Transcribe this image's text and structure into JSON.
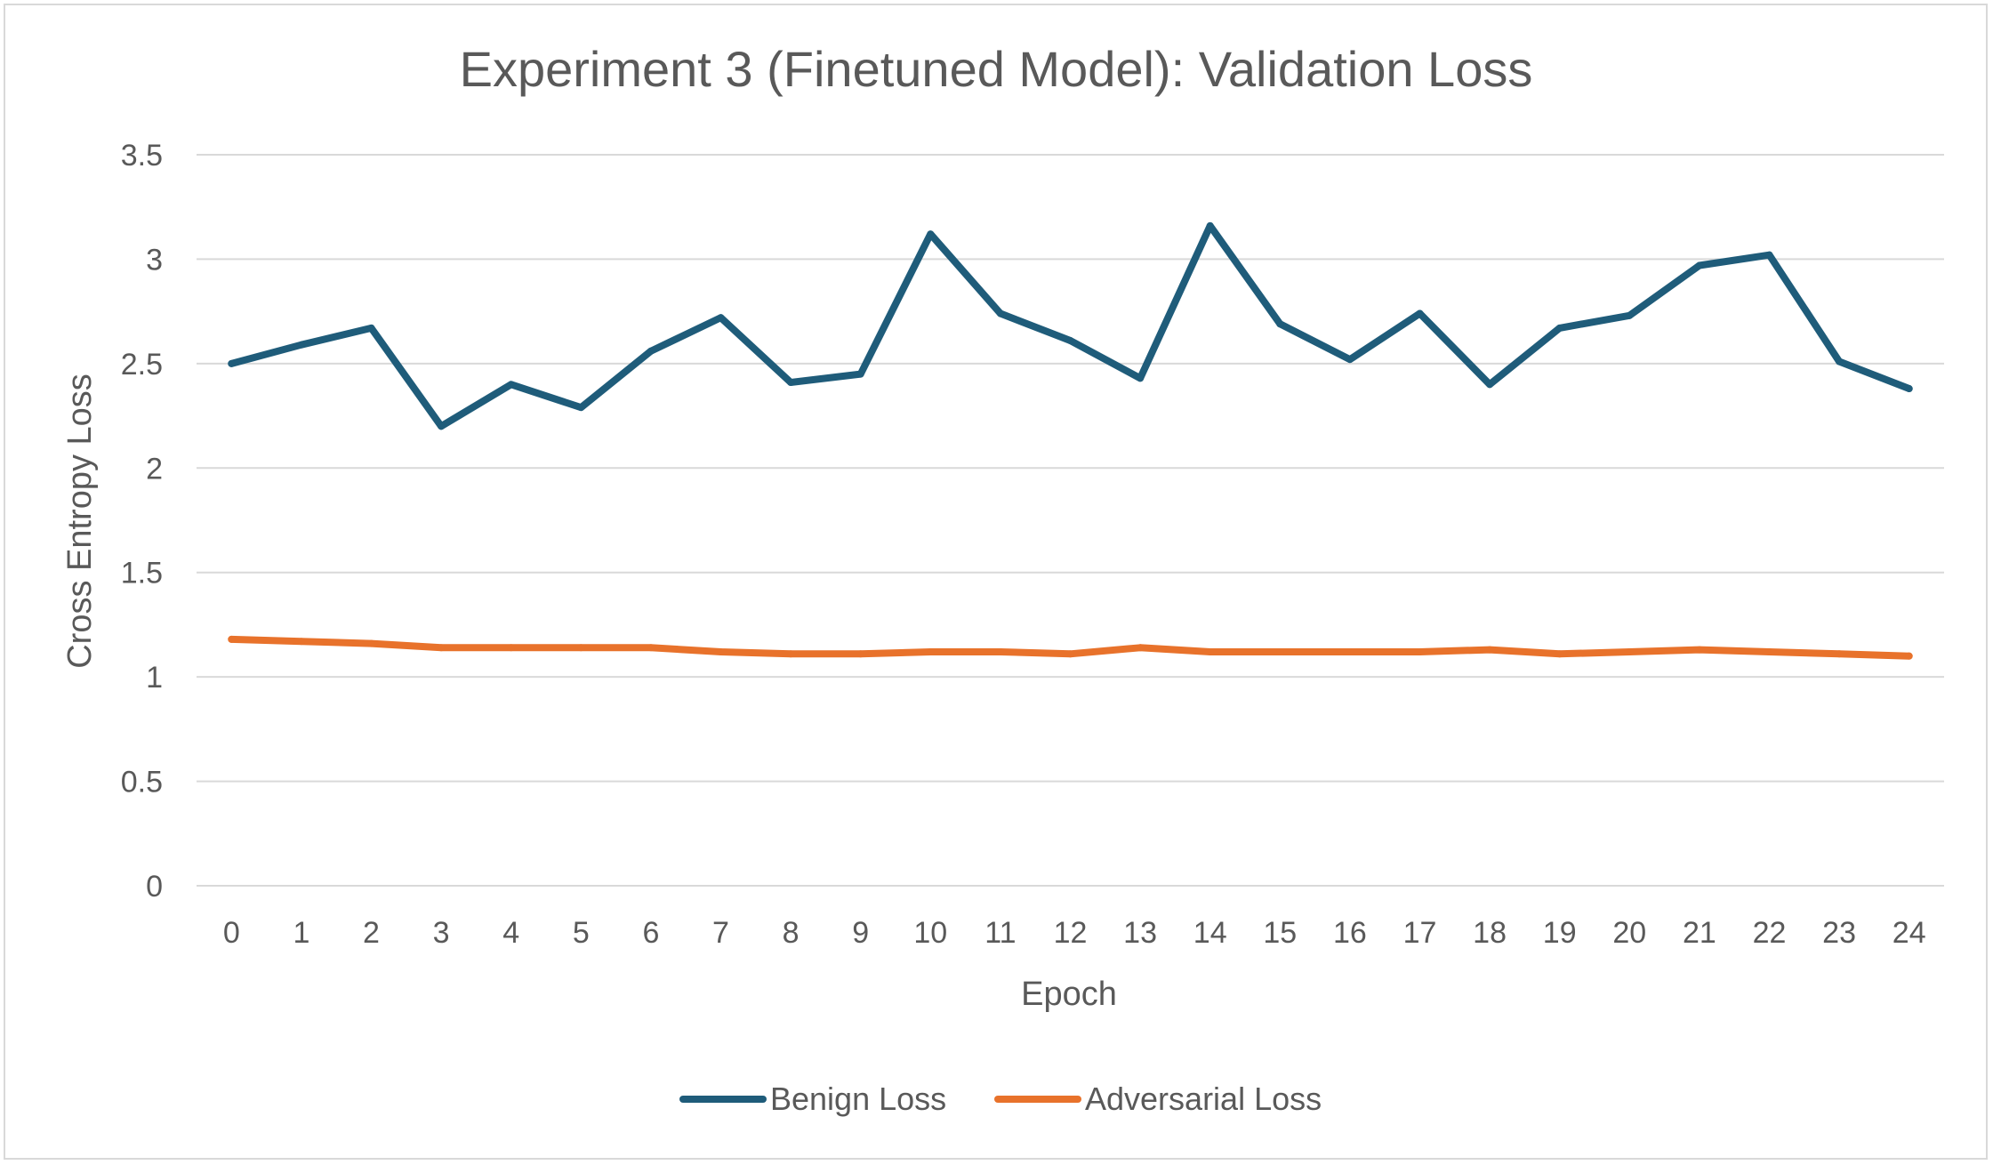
{
  "chart_data": {
    "type": "line",
    "title": "Experiment 3 (Finetuned Model): Validation Loss",
    "xlabel": "Epoch",
    "ylabel": "Cross Entropy Loss",
    "ylim": [
      0,
      3.5
    ],
    "yticks": [
      "0",
      "0.5",
      "1",
      "1.5",
      "2",
      "2.5",
      "3",
      "3.5"
    ],
    "categories": [
      "0",
      "1",
      "2",
      "3",
      "4",
      "5",
      "6",
      "7",
      "8",
      "9",
      "10",
      "11",
      "12",
      "13",
      "14",
      "15",
      "16",
      "17",
      "18",
      "19",
      "20",
      "21",
      "22",
      "23",
      "24"
    ],
    "grid": true,
    "legend_position": "bottom",
    "series": [
      {
        "name": "Benign Loss",
        "color": "#1f5c7a",
        "values": [
          2.5,
          2.59,
          2.67,
          2.2,
          2.4,
          2.29,
          2.56,
          2.72,
          2.41,
          2.45,
          3.12,
          2.74,
          2.61,
          2.43,
          3.16,
          2.69,
          2.52,
          2.74,
          2.4,
          2.67,
          2.73,
          2.97,
          3.02,
          2.51,
          2.38
        ]
      },
      {
        "name": "Adversarial Loss",
        "color": "#e8722b",
        "values": [
          1.18,
          1.17,
          1.16,
          1.14,
          1.14,
          1.14,
          1.14,
          1.12,
          1.11,
          1.11,
          1.12,
          1.12,
          1.11,
          1.14,
          1.12,
          1.12,
          1.12,
          1.12,
          1.13,
          1.11,
          1.12,
          1.13,
          1.12,
          1.11,
          1.1
        ]
      }
    ]
  }
}
